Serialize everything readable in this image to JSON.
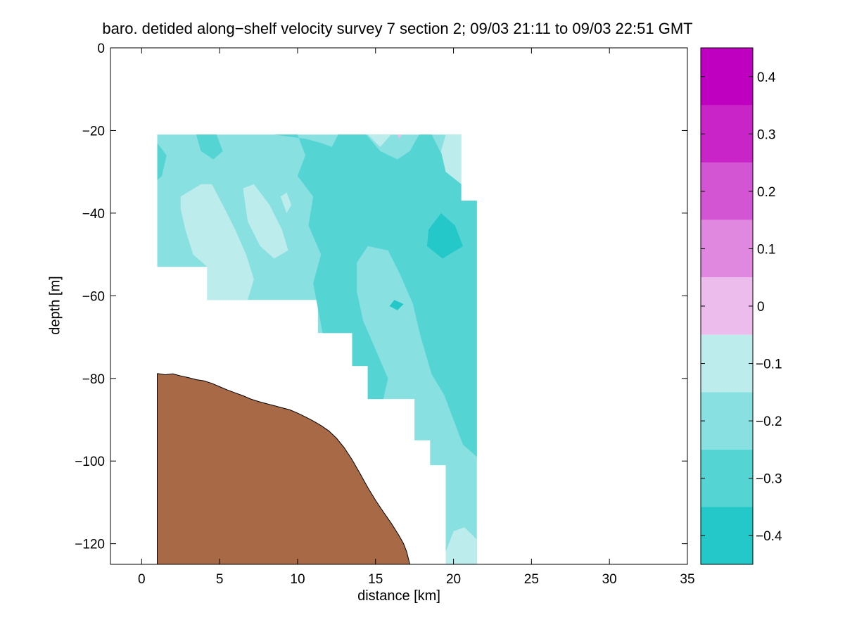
{
  "chart_data": {
    "type": "filled-contour-section",
    "title": "baro. detided along−shelf velocity survey 7 section 2; 09/03 21:11 to 09/03 22:51 GMT",
    "xlabel": "distance [km]",
    "ylabel": "depth [m]",
    "xlim": [
      -2,
      35
    ],
    "ylim": [
      -125,
      0
    ],
    "xticks": [
      0,
      5,
      10,
      15,
      20,
      25,
      30,
      35
    ],
    "yticks": [
      0,
      -20,
      -40,
      -60,
      -80,
      -100,
      -120
    ],
    "colorbar": {
      "range": [
        -0.45,
        0.45
      ],
      "ticks": [
        0.4,
        0.3,
        0.2,
        0.1,
        0,
        -0.1,
        -0.2,
        -0.3,
        -0.4
      ],
      "tick_labels": [
        "0.4",
        "0.3",
        "0.2",
        "0.1",
        "0",
        "−0.1",
        "−0.2",
        "−0.3",
        "−0.4"
      ],
      "levels": [
        {
          "from": 0.35,
          "to": 0.45,
          "color": "#c000c0"
        },
        {
          "from": 0.25,
          "to": 0.35,
          "color": "#c824c8"
        },
        {
          "from": 0.15,
          "to": 0.25,
          "color": "#d455d4"
        },
        {
          "from": 0.05,
          "to": 0.15,
          "color": "#e088e0"
        },
        {
          "from": -0.05,
          "to": 0.05,
          "color": "#ecbcec"
        },
        {
          "from": -0.15,
          "to": -0.05,
          "color": "#bcecec"
        },
        {
          "from": -0.25,
          "to": -0.15,
          "color": "#88e0e0"
        },
        {
          "from": -0.35,
          "to": -0.25,
          "color": "#55d4d4"
        },
        {
          "from": -0.45,
          "to": -0.35,
          "color": "#24c8c8"
        },
        {
          "from": -0.55,
          "to": -0.45,
          "color": "#00c0c0"
        }
      ]
    },
    "data_domain": [
      [
        1,
        -21
      ],
      [
        20.5,
        -21
      ],
      [
        20.5,
        -37
      ],
      [
        21.5,
        -37
      ],
      [
        21.5,
        -125
      ],
      [
        19.5,
        -125
      ],
      [
        19.5,
        -101
      ],
      [
        18.5,
        -101
      ],
      [
        18.5,
        -95
      ],
      [
        17.5,
        -95
      ],
      [
        17.5,
        -85
      ],
      [
        14.5,
        -85
      ],
      [
        14.5,
        -77
      ],
      [
        13.5,
        -77
      ],
      [
        13.5,
        -69
      ],
      [
        11.3,
        -69
      ],
      [
        11.3,
        -61
      ],
      [
        4.2,
        -61
      ],
      [
        4.2,
        -53
      ],
      [
        1,
        -53
      ]
    ],
    "regions": [
      {
        "value": -0.2,
        "polygon": [
          [
            1,
            -21
          ],
          [
            20.5,
            -21
          ],
          [
            20.5,
            -37
          ],
          [
            21.5,
            -37
          ],
          [
            21.5,
            -125
          ],
          [
            19.5,
            -125
          ],
          [
            19.5,
            -101
          ],
          [
            18.5,
            -101
          ],
          [
            18.5,
            -95
          ],
          [
            17.5,
            -95
          ],
          [
            17.5,
            -85
          ],
          [
            14.5,
            -85
          ],
          [
            14.5,
            -77
          ],
          [
            13.5,
            -77
          ],
          [
            13.5,
            -69
          ],
          [
            11.3,
            -69
          ],
          [
            11.3,
            -61
          ],
          [
            4.2,
            -61
          ],
          [
            4.2,
            -53
          ],
          [
            1,
            -53
          ]
        ]
      },
      {
        "value": -0.3,
        "polygon": [
          [
            8.5,
            -21
          ],
          [
            10,
            -21
          ],
          [
            10.5,
            -26
          ],
          [
            10,
            -31
          ],
          [
            11,
            -36
          ],
          [
            10.7,
            -43
          ],
          [
            11.5,
            -50
          ],
          [
            11,
            -57
          ],
          [
            11.3,
            -63
          ],
          [
            11.6,
            -69
          ],
          [
            13.5,
            -69
          ],
          [
            13.5,
            -77
          ],
          [
            14.5,
            -77
          ],
          [
            14.5,
            -85
          ],
          [
            15.5,
            -85
          ],
          [
            15.8,
            -80
          ],
          [
            15,
            -73
          ],
          [
            14.2,
            -66
          ],
          [
            13.8,
            -59
          ],
          [
            13.8,
            -52
          ],
          [
            14.5,
            -48
          ],
          [
            15.8,
            -49
          ],
          [
            16.6,
            -55
          ],
          [
            17.4,
            -62
          ],
          [
            17.9,
            -70
          ],
          [
            18.6,
            -79
          ],
          [
            19.4,
            -84
          ],
          [
            20,
            -90
          ],
          [
            20.6,
            -96
          ],
          [
            21.5,
            -99
          ],
          [
            21.5,
            -37
          ],
          [
            20.5,
            -37
          ],
          [
            20.5,
            -33
          ],
          [
            19.7,
            -29
          ],
          [
            19,
            -24
          ],
          [
            18.6,
            -21
          ],
          [
            17.8,
            -21
          ],
          [
            17.2,
            -25
          ],
          [
            16.4,
            -27
          ],
          [
            15.3,
            -25
          ],
          [
            14.4,
            -21
          ],
          [
            12.6,
            -21
          ],
          [
            12.2,
            -24
          ],
          [
            11.5,
            -23
          ],
          [
            10.5,
            -22
          ]
        ]
      },
      {
        "value": -0.3,
        "polygon": [
          [
            3.5,
            -21
          ],
          [
            4.8,
            -21
          ],
          [
            5.2,
            -25
          ],
          [
            4.6,
            -27
          ],
          [
            3.8,
            -25
          ]
        ]
      },
      {
        "value": -0.3,
        "polygon": [
          [
            1,
            -23
          ],
          [
            1.6,
            -26
          ],
          [
            1.3,
            -31
          ],
          [
            1,
            -32
          ]
        ]
      },
      {
        "value": -0.4,
        "polygon": [
          [
            18.4,
            -44
          ],
          [
            19.2,
            -40
          ],
          [
            20.1,
            -43
          ],
          [
            20.6,
            -48
          ],
          [
            19.3,
            -51
          ],
          [
            18.3,
            -48
          ]
        ]
      },
      {
        "value": -0.4,
        "polygon": [
          [
            16.2,
            -61
          ],
          [
            16.8,
            -62
          ],
          [
            16.4,
            -63.5
          ],
          [
            15.9,
            -62.5
          ]
        ]
      },
      {
        "value": -0.1,
        "polygon": [
          [
            2.5,
            -36
          ],
          [
            3.8,
            -33
          ],
          [
            4.5,
            -33
          ],
          [
            5.2,
            -38
          ],
          [
            6,
            -44
          ],
          [
            6.7,
            -50
          ],
          [
            7.2,
            -56
          ],
          [
            6.8,
            -61
          ],
          [
            4.2,
            -61
          ],
          [
            4.2,
            -53
          ],
          [
            3.3,
            -50
          ],
          [
            2.8,
            -44
          ],
          [
            2.5,
            -39
          ]
        ]
      },
      {
        "value": -0.1,
        "polygon": [
          [
            6.5,
            -34
          ],
          [
            7.2,
            -33
          ],
          [
            8.2,
            -38
          ],
          [
            9,
            -44
          ],
          [
            9.4,
            -49
          ],
          [
            8.5,
            -51
          ],
          [
            7.6,
            -48
          ],
          [
            6.8,
            -42
          ]
        ]
      },
      {
        "value": -0.1,
        "polygon": [
          [
            8.9,
            -36
          ],
          [
            9.3,
            -35
          ],
          [
            9.6,
            -38
          ],
          [
            9.3,
            -40
          ]
        ]
      },
      {
        "value": -0.1,
        "polygon": [
          [
            14.5,
            -21
          ],
          [
            16,
            -21
          ],
          [
            15.3,
            -24
          ]
        ]
      },
      {
        "value": -0.1,
        "polygon": [
          [
            19.5,
            -21
          ],
          [
            20.5,
            -21
          ],
          [
            20.5,
            -33
          ],
          [
            19.5,
            -30
          ],
          [
            19.2,
            -25
          ]
        ]
      },
      {
        "value": -0.1,
        "polygon": [
          [
            19.5,
            -122
          ],
          [
            20,
            -117
          ],
          [
            20.7,
            -116
          ],
          [
            21.5,
            -119
          ],
          [
            21.5,
            -125
          ],
          [
            19.5,
            -125
          ]
        ]
      },
      {
        "value": 0.0,
        "polygon": [
          [
            16.4,
            -21
          ],
          [
            16.7,
            -21
          ],
          [
            16.5,
            -22
          ]
        ]
      }
    ],
    "bathymetry": [
      [
        1,
        -78.8
      ],
      [
        1.5,
        -79.1
      ],
      [
        2,
        -78.9
      ],
      [
        2.5,
        -79.4
      ],
      [
        3,
        -79.8
      ],
      [
        3.5,
        -80.3
      ],
      [
        4,
        -80.6
      ],
      [
        4.5,
        -81.2
      ],
      [
        5,
        -82
      ],
      [
        5.5,
        -82.8
      ],
      [
        6,
        -83.5
      ],
      [
        6.5,
        -84.2
      ],
      [
        7,
        -85
      ],
      [
        7.5,
        -85.6
      ],
      [
        8,
        -86.1
      ],
      [
        8.5,
        -86.6
      ],
      [
        9,
        -87.1
      ],
      [
        9.5,
        -87.6
      ],
      [
        10,
        -88.4
      ],
      [
        10.5,
        -89.3
      ],
      [
        11,
        -90.3
      ],
      [
        11.5,
        -91.4
      ],
      [
        12,
        -92.7
      ],
      [
        12.5,
        -94.5
      ],
      [
        13,
        -96.8
      ],
      [
        13.5,
        -99.7
      ],
      [
        14,
        -103
      ],
      [
        14.5,
        -106.4
      ],
      [
        15,
        -109.5
      ],
      [
        15.5,
        -112.3
      ],
      [
        16,
        -115
      ],
      [
        16.5,
        -118
      ],
      [
        16.8,
        -120
      ],
      [
        17,
        -122
      ],
      [
        17.2,
        -125
      ]
    ],
    "bathymetry_fill": "#a86a46"
  }
}
